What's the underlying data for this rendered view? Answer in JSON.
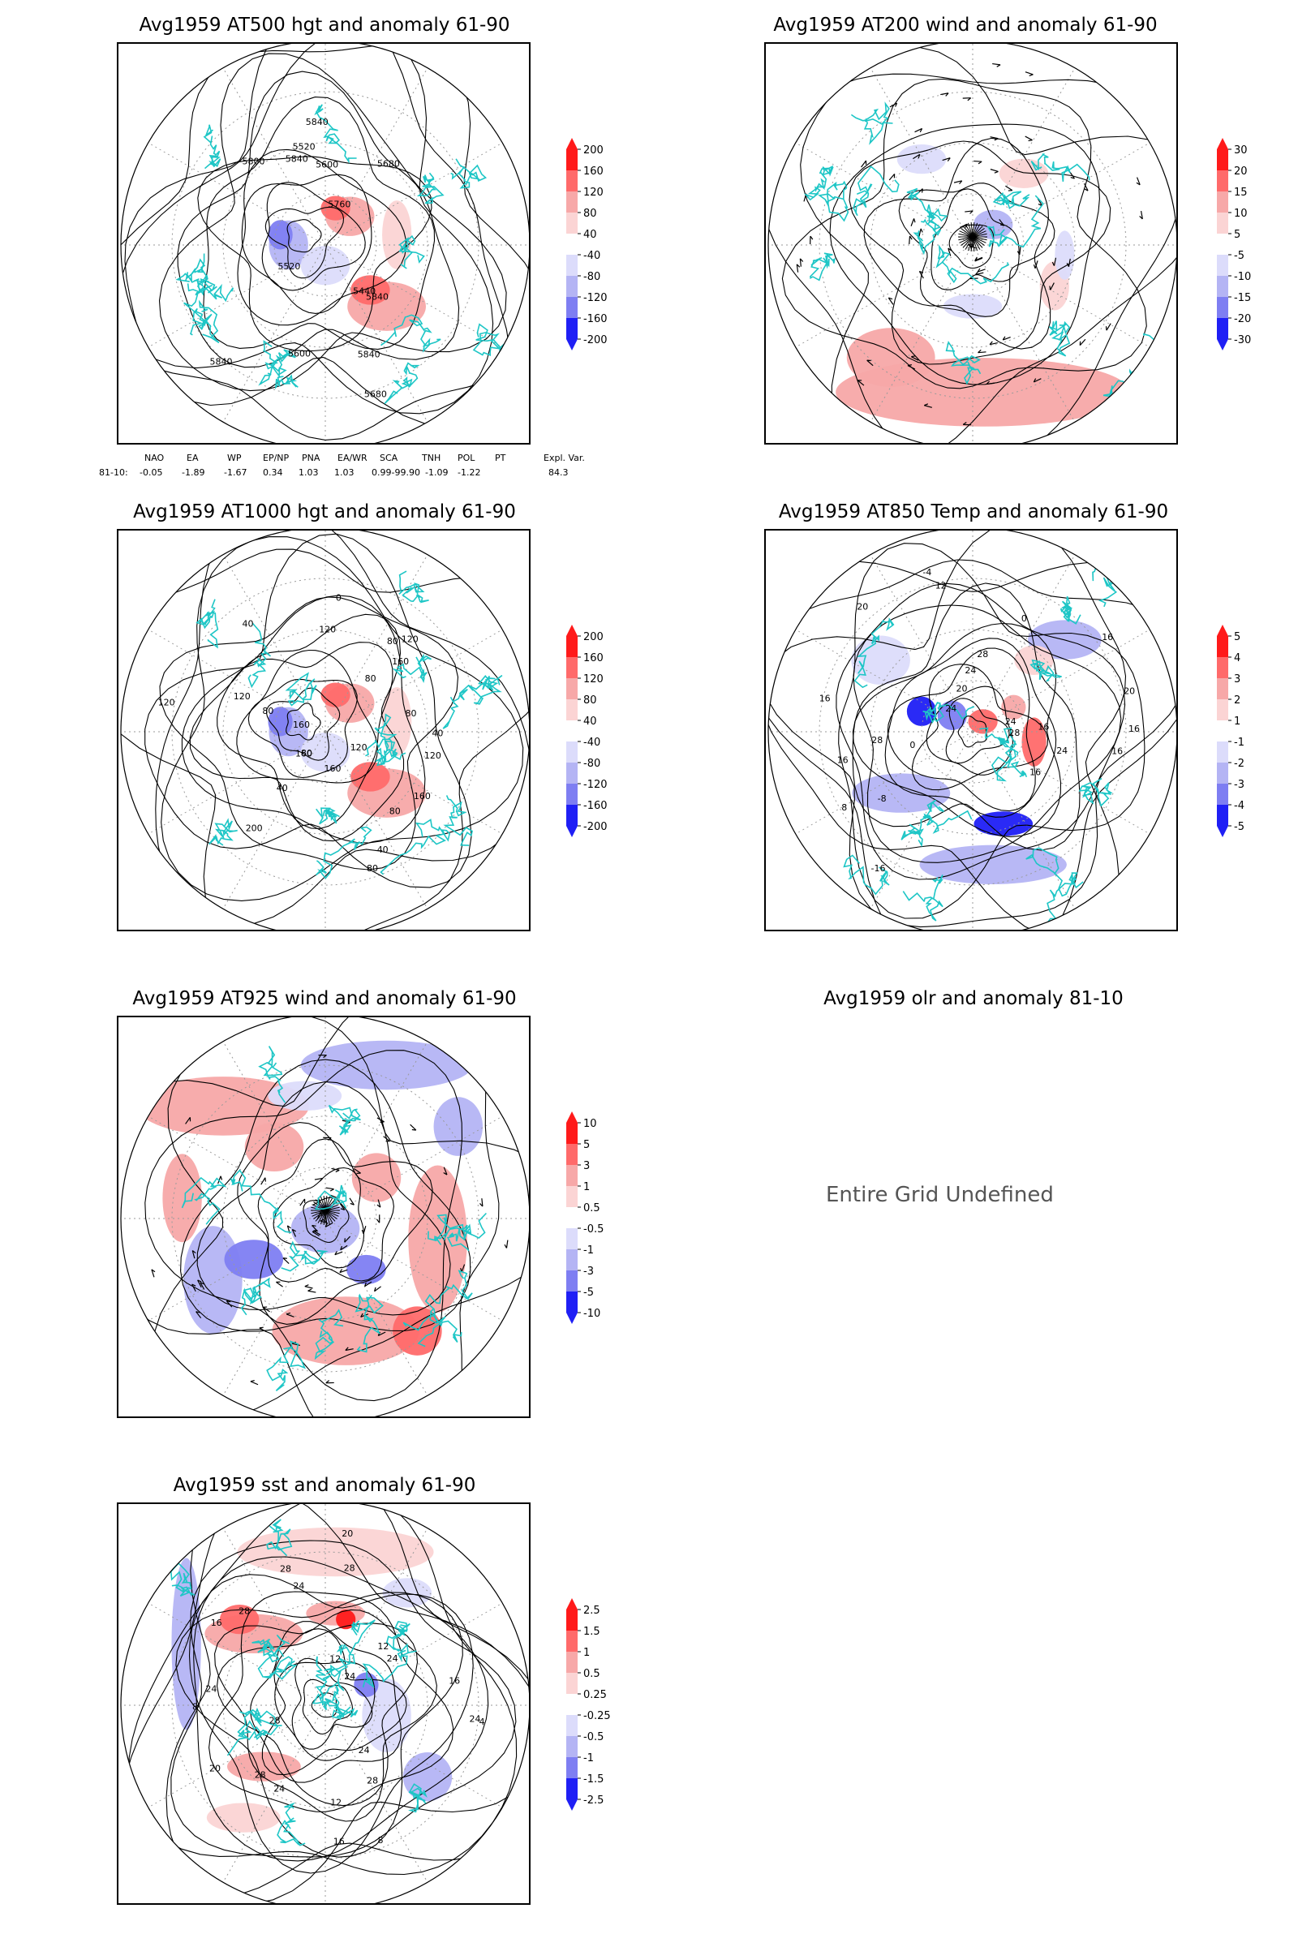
{
  "panels": [
    {
      "id": "p500",
      "title": "Avg1959 AT500 hgt and anomaly 61-90",
      "colorbar": [
        "200",
        "160",
        "120",
        "80",
        "40",
        "-40",
        "-80",
        "-120",
        "-160",
        "-200"
      ],
      "contour_labels": [
        "5840",
        "5600",
        "5680",
        "5520",
        "5800",
        "5440",
        "5520",
        "5600",
        "5680",
        "5760",
        "5840",
        "5840",
        "5840",
        "5840"
      ]
    },
    {
      "id": "p200",
      "title": "Avg1959 AT200 wind and anomaly 61-90",
      "colorbar": [
        "30",
        "20",
        "15",
        "10",
        "5",
        "-5",
        "-10",
        "-15",
        "-20",
        "-30"
      ],
      "contour_labels": []
    },
    {
      "id": "p1000",
      "title": "Avg1959 AT1000 hgt and anomaly 61-90",
      "colorbar": [
        "200",
        "160",
        "120",
        "80",
        "40",
        "-40",
        "-80",
        "-120",
        "-160",
        "-200"
      ],
      "contour_labels": [
        "80",
        "120",
        "120",
        "200",
        "160",
        "120",
        "80",
        "160",
        "160",
        "120",
        "80",
        "120",
        "160",
        "160",
        "120",
        "40",
        "80",
        "40",
        "80",
        "40",
        "80",
        "40",
        "0",
        "80"
      ]
    },
    {
      "id": "p850",
      "title": "Avg1959 AT850 Temp and anomaly 61-90",
      "colorbar": [
        "5",
        "4",
        "3",
        "2",
        "1",
        "-1",
        "-2",
        "-3",
        "-4",
        "-5"
      ],
      "contour_labels": [
        "16",
        "12",
        "16",
        "8",
        "20",
        "24",
        "0",
        "-4",
        "-8",
        "0",
        "28",
        "24",
        "16",
        "16",
        "28",
        "24",
        "20",
        "16",
        "24",
        "28",
        "16",
        "20",
        "-16",
        "16"
      ]
    },
    {
      "id": "p925",
      "title": "Avg1959 AT925 wind and anomaly 61-90",
      "colorbar": [
        "10",
        "5",
        "3",
        "1",
        "0.5",
        "-0.5",
        "-1",
        "-3",
        "-5",
        "-10"
      ],
      "contour_labels": []
    },
    {
      "id": "polr",
      "title": "Avg1959 olr and anomaly 81-10",
      "undefined_text": "Entire Grid Undefined"
    },
    {
      "id": "psst",
      "title": "Avg1959 sst and anomaly 61-90",
      "colorbar": [
        "2.5",
        "1.5",
        "1",
        "0.5",
        "0.25",
        "-0.25",
        "-0.5",
        "-1",
        "-1.5",
        "-2.5"
      ],
      "contour_labels": [
        "28",
        "24",
        "28",
        "24",
        "20",
        "16",
        "12",
        "24",
        "20",
        "16",
        "12",
        "28",
        "8",
        "4",
        "16",
        "12",
        "8",
        "28",
        "28",
        "24",
        "24",
        "28",
        "24",
        "24"
      ]
    }
  ],
  "teleconnection": {
    "headers": [
      "NAO",
      "EA",
      "WP",
      "EP/NP",
      "PNA",
      "EA/WR",
      "SCA",
      "TNH",
      "POL",
      "PT",
      "Expl. Var."
    ],
    "row_label": "81-10:",
    "values": [
      "-0.05",
      "-1.89",
      "-1.67",
      "0.34",
      "1.03",
      "1.03",
      "0.99-99.90",
      "-1.09",
      "-1.22",
      "",
      "84.3"
    ]
  },
  "colors": {
    "pos_strong": "#ff1a1a",
    "pos_mid": "#ff6a6a",
    "pos_light": "#f7a8a8",
    "pos_faint": "#fbd4d4",
    "neg_faint": "#dcdcfb",
    "neg_light": "#b4b4f4",
    "neg_mid": "#7e7ef2",
    "neg_strong": "#1f1ff5",
    "coast": "#1ec6c6",
    "contour": "#000000",
    "grid": "#9a9a9a"
  }
}
